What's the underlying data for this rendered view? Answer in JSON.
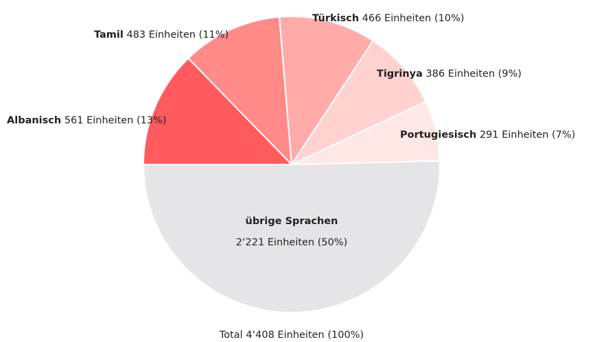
{
  "chart_data": {
    "type": "pie",
    "categories": [
      "Albanisch",
      "Tamil",
      "Türkisch",
      "Tigrinya",
      "Portugiesisch",
      "übrige Sprachen"
    ],
    "values": [
      561,
      483,
      466,
      386,
      291,
      2221
    ],
    "value_labels": [
      "561 Einheiten (13%)",
      "483 Einheiten (11%)",
      "466 Einheiten (10%)",
      "386 Einheiten (9%)",
      "291 Einheiten (7%)",
      "2‘221 Einheiten (50%)"
    ],
    "colors": [
      "#ff5b5e",
      "#ff8a88",
      "#ffabaa",
      "#ffd1cf",
      "#ffe7e5",
      "#e5e5e7"
    ],
    "total_label": "Total 4‘408 Einheiten (100%)"
  }
}
